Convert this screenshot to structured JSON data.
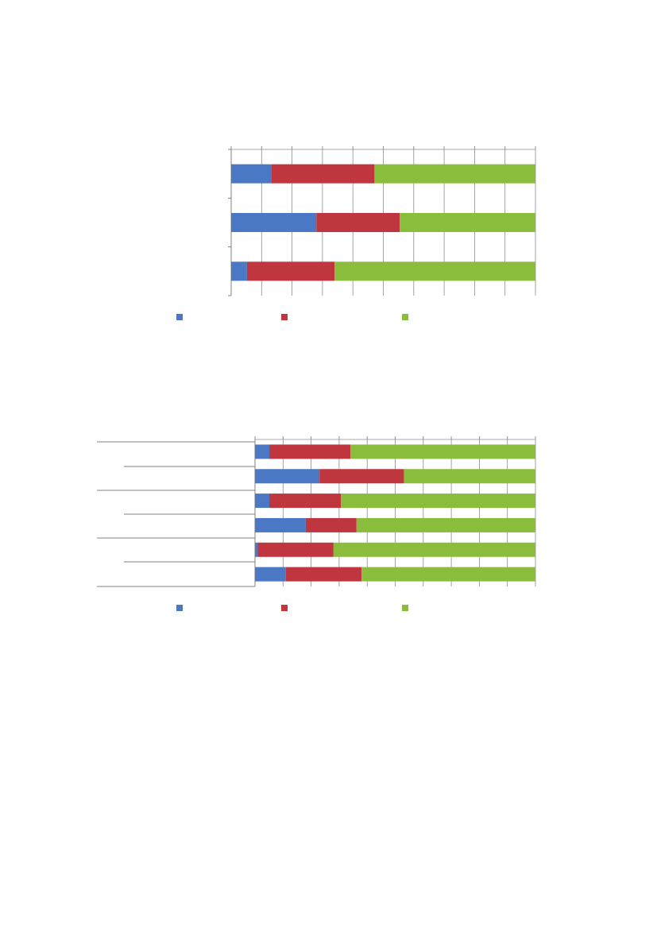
{
  "colors": {
    "series1": "#4a78c4",
    "series2": "#c0363f",
    "series3": "#8bbd3c",
    "gridline": "#8c8c8c",
    "axis": "#808080"
  },
  "chart_data": [
    {
      "type": "bar",
      "orientation": "horizontal",
      "stacked": "percent",
      "title": "",
      "xlim": [
        0,
        100
      ],
      "grid": true,
      "legend_position": "bottom",
      "categories": [
        "",
        "",
        ""
      ],
      "series": [
        {
          "color": "#4a78c4",
          "values": [
            13.3,
            28.0,
            5.2
          ]
        },
        {
          "color": "#c0363f",
          "values": [
            33.8,
            27.4,
            28.8
          ]
        },
        {
          "color": "#8bbd3c",
          "values": [
            52.9,
            44.6,
            66.0
          ]
        }
      ]
    },
    {
      "type": "bar",
      "orientation": "horizontal",
      "stacked": "percent",
      "title": "",
      "xlim": [
        0,
        100
      ],
      "grid": true,
      "legend_position": "bottom",
      "categories": [
        "",
        "",
        "",
        "",
        "",
        ""
      ],
      "series": [
        {
          "color": "#4a78c4",
          "values": [
            5.1,
            23.0,
            5.1,
            18.1,
            1.0,
            11.0
          ]
        },
        {
          "color": "#c0363f",
          "values": [
            28.9,
            30.1,
            25.5,
            18.1,
            27.0,
            27.0
          ]
        },
        {
          "color": "#8bbd3c",
          "values": [
            66.0,
            46.9,
            69.4,
            63.8,
            72.0,
            62.0
          ]
        }
      ]
    }
  ]
}
